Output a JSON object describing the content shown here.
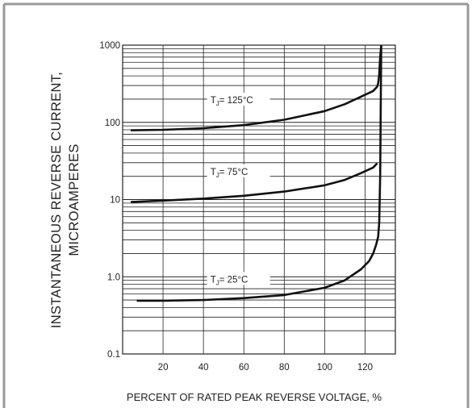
{
  "chart_data": {
    "type": "line",
    "y_scale": "log",
    "ylim": [
      0.1,
      1000
    ],
    "xlim": [
      0,
      135
    ],
    "y_ticks": [
      {
        "value": 1000,
        "label": "1000"
      },
      {
        "value": 100,
        "label": "100"
      },
      {
        "value": 10,
        "label": "10"
      },
      {
        "value": 1,
        "label": "1.0"
      },
      {
        "value": 0.1,
        "label": "0.1"
      }
    ],
    "x_ticks": [
      {
        "value": 20,
        "label": "20"
      },
      {
        "value": 40,
        "label": "40"
      },
      {
        "value": 60,
        "label": "60"
      },
      {
        "value": 80,
        "label": "80"
      },
      {
        "value": 100,
        "label": "100"
      },
      {
        "value": 120,
        "label": "120"
      }
    ],
    "x_gridlines": [
      20,
      40,
      60,
      80,
      100,
      120
    ],
    "grid": true,
    "ylabel_line1": "INSTANTANEOUS REVERSE CURRENT,",
    "ylabel_line2": "MICROAMPERES",
    "xlabel": "PERCENT OF RATED PEAK REVERSE VOLTAGE, %",
    "series": [
      {
        "tj_label": "T",
        "tj_sub": "J",
        "tj_rest": "= 125°C",
        "label_at": {
          "x": 57,
          "y": 195
        },
        "points": [
          [
            4,
            79
          ],
          [
            20,
            80
          ],
          [
            40,
            84
          ],
          [
            60,
            92
          ],
          [
            80,
            108
          ],
          [
            100,
            140
          ],
          [
            110,
            172
          ],
          [
            118,
            215
          ],
          [
            124,
            255
          ],
          [
            126,
            290
          ],
          [
            126.5,
            320
          ],
          [
            127,
            420
          ],
          [
            127.5,
            700
          ],
          [
            128,
            1000
          ]
        ]
      },
      {
        "tj_label": "T",
        "tj_sub": "J",
        "tj_rest": "= 75°C",
        "label_at": {
          "x": 57,
          "y": 23
        },
        "points": [
          [
            4,
            9.3
          ],
          [
            20,
            9.7
          ],
          [
            40,
            10.3
          ],
          [
            60,
            11.2
          ],
          [
            80,
            12.7
          ],
          [
            100,
            15.3
          ],
          [
            110,
            18
          ],
          [
            118,
            22
          ],
          [
            124,
            26
          ],
          [
            126,
            29.5
          ]
        ]
      },
      {
        "tj_label": "T",
        "tj_sub": "J",
        "tj_rest": "= 25°C",
        "label_at": {
          "x": 57,
          "y": 0.93
        },
        "points": [
          [
            7,
            0.49
          ],
          [
            20,
            0.49
          ],
          [
            40,
            0.5
          ],
          [
            60,
            0.53
          ],
          [
            80,
            0.58
          ],
          [
            100,
            0.72
          ],
          [
            110,
            0.9
          ],
          [
            118,
            1.25
          ],
          [
            122,
            1.6
          ],
          [
            124,
            2.0
          ],
          [
            125.5,
            2.6
          ],
          [
            126.5,
            3.3
          ],
          [
            127,
            5
          ],
          [
            127.5,
            20
          ],
          [
            128,
            1000
          ]
        ]
      }
    ]
  }
}
